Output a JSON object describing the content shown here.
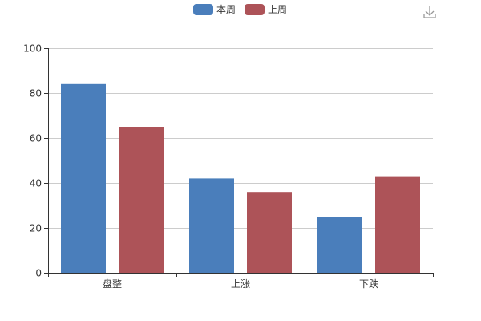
{
  "chart_data": {
    "type": "bar",
    "categories": [
      "盘整",
      "上涨",
      "下跌"
    ],
    "series": [
      {
        "name": "本周",
        "values": [
          84,
          42,
          25
        ],
        "color": "#4a7ebb"
      },
      {
        "name": "上周",
        "values": [
          65,
          36,
          43
        ],
        "color": "#ad5358"
      }
    ],
    "ylim": [
      0,
      100
    ],
    "yticks": [
      "0",
      "20",
      "40",
      "60",
      "80",
      "100"
    ],
    "grid": true,
    "legend_position": "top-center",
    "title": "",
    "xlabel": "",
    "ylabel": ""
  },
  "toolbox": {
    "icon": "download-icon",
    "icon_color": "#999999"
  }
}
